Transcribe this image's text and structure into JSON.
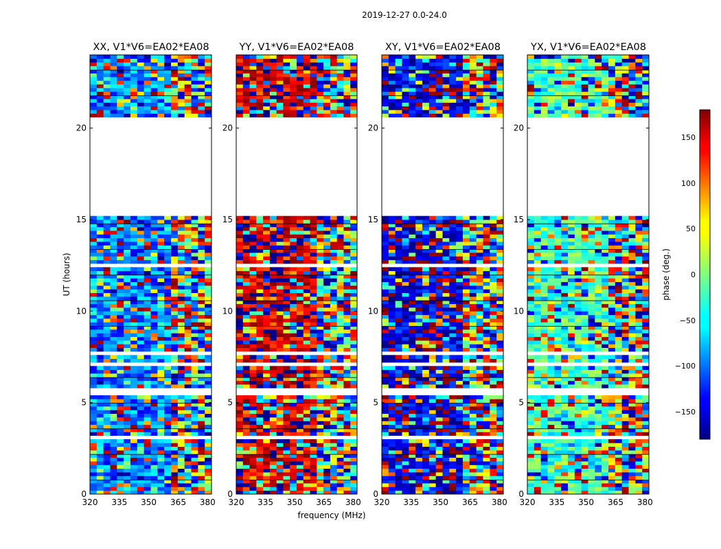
{
  "chart_data": {
    "type": "heatmap",
    "suptitle": "2019-12-27 0.0-24.0",
    "xlabel": "frequency (MHz)",
    "ylabel": "UT (hours)",
    "xlim": [
      320,
      382
    ],
    "ylim": [
      0,
      24
    ],
    "xticks": [
      "320",
      "335",
      "350",
      "365",
      "380"
    ],
    "yticks": [
      "0",
      "5",
      "10",
      "15",
      "20"
    ],
    "panels": [
      {
        "title": "XX, V1*V6=EA02*EA08",
        "dominant_phase_deg": -90
      },
      {
        "title": "YY, V1*V6=EA02*EA08",
        "dominant_phase_deg": 150
      },
      {
        "title": "XY, V1*V6=EA02*EA08",
        "dominant_phase_deg": -150
      },
      {
        "title": "YX, V1*V6=EA02*EA08",
        "dominant_phase_deg": -20
      }
    ],
    "flagged_hours": [
      [
        3.1,
        3.2
      ],
      [
        5.5,
        5.7
      ],
      [
        6.95,
        7.3
      ],
      [
        7.55,
        7.75
      ],
      [
        12.4,
        12.55
      ],
      [
        15.2,
        20.5
      ]
    ],
    "colorbar": {
      "label": "phase (deg.)",
      "range": [
        -180,
        180
      ],
      "ticks": [
        "150",
        "100",
        "50",
        "0",
        "−50",
        "−100",
        "−150"
      ]
    }
  }
}
